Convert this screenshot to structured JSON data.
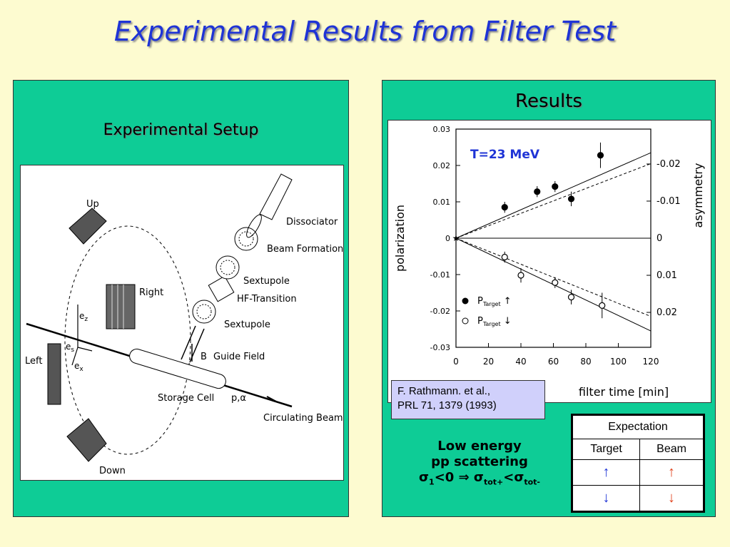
{
  "title": "Experimental Results from Filter Test",
  "left_panel": {
    "heading": "Experimental Setup",
    "diagram_labels": {
      "up": "Up",
      "right": "Right",
      "left": "Left",
      "down": "Down",
      "ez": "e",
      "ez_sub": "z",
      "es": "e",
      "es_sub": "s",
      "ex": "e",
      "ex_sub": "x",
      "dissociator": "Dissociator",
      "beam_formation": "Beam Formation",
      "sextupole1": "Sextupole",
      "hf_transition": "HF-Transition",
      "sextupole2": "Sextupole",
      "b_symbol": "B",
      "guide_field": "Guide Field",
      "storage_cell": "Storage Cell",
      "p_alpha": "p,α",
      "circulating_beam": "Circulating Beam"
    }
  },
  "right_panel": {
    "heading": "Results",
    "reference_line1": "F. Rathmann. et al.,",
    "reference_line2": "PRL 71, 1379 (1993)",
    "note_line1": "Low energy",
    "note_line2": "pp scattering",
    "note_line3_sigma1": "σ",
    "note_line3_sub1": "1",
    "note_line3_mid": "<0 ⇒ σ",
    "note_line3_sub2": "tot+",
    "note_line3_lt": "<σ",
    "note_line3_sub3": "tot-"
  },
  "expectation_table": {
    "header": "Expectation",
    "col_target": "Target",
    "col_beam": "Beam",
    "row1_target": "↑",
    "row1_beam": "↑",
    "row2_target": "↓",
    "row2_beam": "↓"
  },
  "chart_data": {
    "type": "scatter",
    "annotation": "T=23 MeV",
    "xlabel": "filter time [min]",
    "ylabel": "polarization",
    "y2label": "asymmetry",
    "xlim": [
      0,
      120
    ],
    "ylim": [
      -0.03,
      0.03
    ],
    "x_ticks": [
      "0",
      "20",
      "40",
      "60",
      "80",
      "100",
      "120"
    ],
    "y_ticks": [
      "0.03",
      "0.02",
      "0.01",
      "0",
      "-0.01",
      "-0.02",
      "-0.03"
    ],
    "y2_ticks": [
      "-0.02",
      "-0.01",
      "0",
      "0.01",
      "0.02"
    ],
    "series": [
      {
        "name": "P_Target ↑",
        "legend_main": "P",
        "legend_sub": "Target",
        "legend_arrow": "↑",
        "marker": "filled",
        "points": [
          {
            "x": 30,
            "y": 0.0085,
            "err": 0.0015
          },
          {
            "x": 50,
            "y": 0.0128,
            "err": 0.0015
          },
          {
            "x": 61,
            "y": 0.0142,
            "err": 0.0015
          },
          {
            "x": 71,
            "y": 0.0108,
            "err": 0.002
          },
          {
            "x": 89,
            "y": 0.0228,
            "err": 0.0035
          }
        ]
      },
      {
        "name": "P_Target ↓",
        "legend_main": "P",
        "legend_sub": "Target",
        "legend_arrow": "↓",
        "marker": "open",
        "points": [
          {
            "x": 30,
            "y": -0.0052,
            "err": 0.0015
          },
          {
            "x": 40,
            "y": -0.0102,
            "err": 0.002
          },
          {
            "x": 61,
            "y": -0.0122,
            "err": 0.0015
          },
          {
            "x": 71,
            "y": -0.0162,
            "err": 0.002
          },
          {
            "x": 90,
            "y": -0.0185,
            "err": 0.0035
          }
        ]
      }
    ],
    "fit_lines": [
      {
        "style": "solid",
        "start": [
          0,
          0
        ],
        "end": [
          120,
          0.0235
        ]
      },
      {
        "style": "dashed",
        "start": [
          0,
          0
        ],
        "end": [
          120,
          0.0205
        ]
      },
      {
        "style": "solid",
        "start": [
          0,
          0
        ],
        "end": [
          120,
          -0.0255
        ]
      },
      {
        "style": "dashed",
        "start": [
          0,
          0
        ],
        "end": [
          120,
          -0.0215
        ]
      }
    ]
  }
}
